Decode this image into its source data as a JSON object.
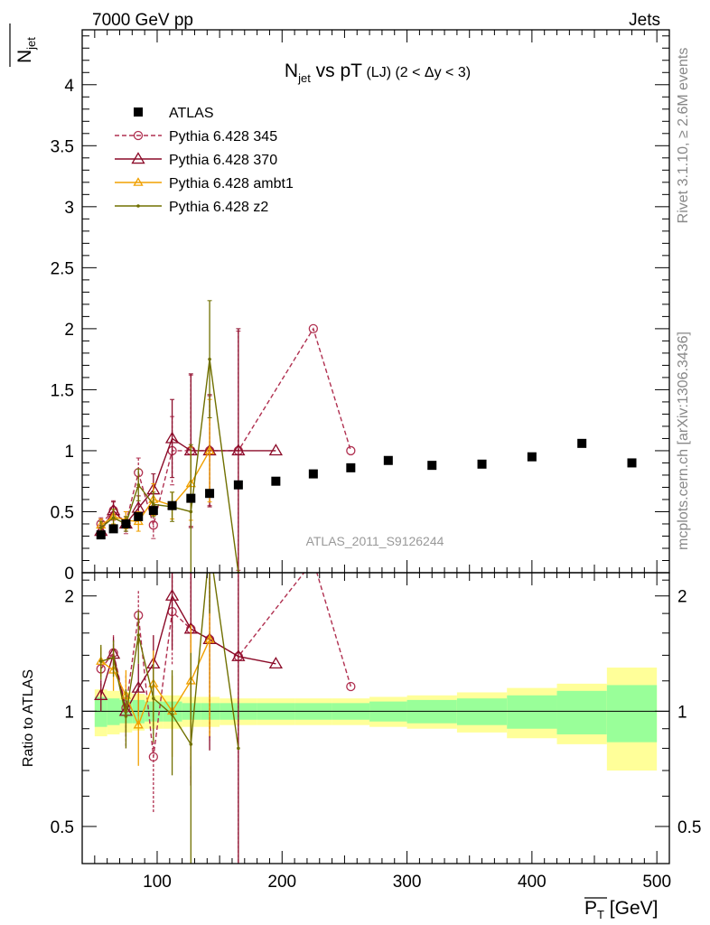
{
  "header": {
    "left": "7000 GeV pp",
    "right": "Jets"
  },
  "side_labels": {
    "rivet": "Rivet 3.1.10, ≥ 2.6M events",
    "mcplots": "mcplots.cern.ch [arXiv:1306.3436]"
  },
  "analysis_id": "ATLAS_2011_S9126244",
  "chart_data": {
    "type": "line",
    "title": "N_jet vs pT (LJ) (2 < Δy < 3)",
    "title_parts": {
      "main": "N",
      "sub": "jet",
      "rest": " vs pT",
      "small": " (LJ) (2 < Δy < 3)"
    },
    "ylabel": "N_jet",
    "ylabel_parts": {
      "main": "N",
      "sub": "jet"
    },
    "xlabel": "P_T [GeV]",
    "xlabel_parts": {
      "main": "P",
      "sub": "T",
      "rest": " [GeV]"
    },
    "xlim": [
      40,
      510
    ],
    "ylim": [
      0,
      4.45
    ],
    "ratio_ylabel": "Ratio to ATLAS",
    "ratio_ylim": [
      0.4,
      2.3
    ],
    "x_ticks": [
      100,
      200,
      300,
      400,
      500
    ],
    "x_tick_labels": [
      "100",
      "200",
      "300",
      "400",
      "500"
    ],
    "y_ticks": [
      0,
      0.5,
      1,
      1.5,
      2,
      2.5,
      3,
      3.5,
      4
    ],
    "y_tick_labels": [
      "0",
      "0.5",
      "1",
      "1.5",
      "2",
      "2.5",
      "3",
      "3.5",
      "4"
    ],
    "ratio_ticks": [
      0.5,
      1,
      2
    ],
    "ratio_tick_labels": [
      "0.5",
      "1",
      "2"
    ],
    "legend_position": "top-left",
    "data": {
      "name": "ATLAS",
      "color": "#000000",
      "x": [
        55,
        65,
        75,
        85,
        97,
        112,
        127,
        142,
        165,
        195,
        225,
        255,
        285,
        320,
        360,
        400,
        440,
        480
      ],
      "y": [
        0.31,
        0.36,
        0.4,
        0.46,
        0.51,
        0.55,
        0.61,
        0.65,
        0.72,
        0.75,
        0.81,
        0.86,
        0.92,
        0.88,
        0.89,
        0.95,
        1.06,
        0.9
      ],
      "band_x_edges": [
        50,
        60,
        70,
        80,
        90,
        105,
        120,
        135,
        150,
        180,
        210,
        240,
        270,
        300,
        340,
        380,
        420,
        460,
        500
      ],
      "band_inner": [
        0.09,
        0.08,
        0.07,
        0.07,
        0.06,
        0.06,
        0.05,
        0.05,
        0.05,
        0.05,
        0.05,
        0.05,
        0.06,
        0.07,
        0.08,
        0.1,
        0.13,
        0.17
      ],
      "band_outer": [
        0.14,
        0.13,
        0.12,
        0.11,
        0.1,
        0.1,
        0.09,
        0.09,
        0.08,
        0.08,
        0.08,
        0.08,
        0.09,
        0.1,
        0.12,
        0.15,
        0.18,
        0.3
      ]
    },
    "series": [
      {
        "name": "Pythia 6.428 345",
        "color": "#b03050",
        "dash": "5,3",
        "marker": "circle",
        "x": [
          55,
          65,
          75,
          85,
          97,
          112,
          127,
          142,
          165,
          225,
          255
        ],
        "y": [
          0.4,
          0.51,
          0.41,
          0.82,
          0.39,
          1.0,
          1.0,
          1.0,
          1.0,
          2.0,
          1.0
        ],
        "err": [
          0.05,
          0.08,
          0.09,
          0.12,
          0.11,
          0.28,
          0.62,
          0.45,
          0.98,
          0,
          0
        ],
        "ratio": [
          1.29,
          1.42,
          1.02,
          1.78,
          0.76,
          1.82,
          1.64,
          1.54,
          1.39,
          2.47,
          1.16
        ],
        "ratio_err": [
          0.14,
          0.16,
          0.22,
          0.28,
          0.22,
          0.5,
          1.0,
          0.7,
          1.36,
          0,
          0
        ]
      },
      {
        "name": "Pythia 6.428 370",
        "color": "#8b0a28",
        "dash": "",
        "marker": "triangle",
        "x": [
          55,
          65,
          75,
          85,
          97,
          112,
          127,
          142,
          165,
          195
        ],
        "y": [
          0.34,
          0.51,
          0.4,
          0.53,
          0.68,
          1.1,
          1.0,
          1.0,
          1.0,
          1.0
        ],
        "err": [
          0.05,
          0.07,
          0.06,
          0.1,
          0.13,
          0.32,
          0.63,
          0.46,
          1.0,
          0
        ],
        "ratio": [
          1.1,
          1.41,
          1.0,
          1.15,
          1.33,
          2.0,
          1.64,
          1.54,
          1.39,
          1.33
        ],
        "ratio_err": [
          0.1,
          0.15,
          0.14,
          0.18,
          0.25,
          0.55,
          1.0,
          0.75,
          1.4,
          0
        ]
      },
      {
        "name": "Pythia 6.428 ambt1",
        "color": "#f0a000",
        "dash": "",
        "marker": "triangle-small",
        "x": [
          55,
          65,
          75,
          85,
          97,
          112,
          127,
          142
        ],
        "y": [
          0.39,
          0.46,
          0.43,
          0.42,
          0.6,
          0.55,
          0.73,
          1.0
        ],
        "err": [
          0.05,
          0.06,
          0.07,
          0.08,
          0.13,
          0.11,
          0.3,
          0.42
        ],
        "ratio": [
          1.35,
          1.28,
          1.1,
          0.92,
          1.18,
          1.0,
          1.2,
          1.54
        ],
        "ratio_err": [
          0.12,
          0.15,
          0.18,
          0.2,
          0.26,
          0.24,
          0.48,
          0.68
        ]
      },
      {
        "name": "Pythia 6.428 z2",
        "color": "#707000",
        "dash": "",
        "marker": "dot",
        "x": [
          55,
          65,
          75,
          85,
          97,
          112,
          127,
          142,
          165
        ],
        "y": [
          0.37,
          0.45,
          0.4,
          0.72,
          0.56,
          0.54,
          0.5,
          1.75,
          0.0
        ],
        "err": [
          0.05,
          0.07,
          0.06,
          0.13,
          0.1,
          0.12,
          0.55,
          0.48,
          0
        ],
        "ratio": [
          1.35,
          1.38,
          0.97,
          1.58,
          1.08,
          0.98,
          0.82,
          2.7,
          0.8
        ],
        "ratio_err": [
          0.14,
          0.15,
          0.17,
          0.25,
          0.25,
          0.3,
          0.6,
          0.9,
          0
        ]
      }
    ]
  }
}
